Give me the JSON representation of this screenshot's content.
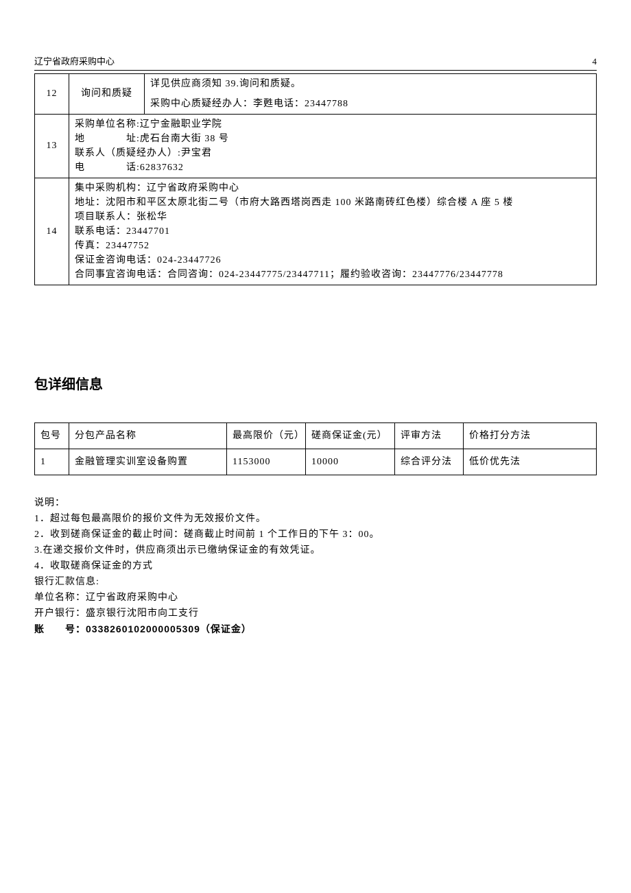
{
  "header": {
    "left": "辽宁省政府采购中心",
    "page_number": "4"
  },
  "info_table": {
    "row12": {
      "num": "12",
      "label": "询问和质疑",
      "line1": "详见供应商须知 39.询问和质疑。",
      "line2": "采购中心质疑经办人：李甦电话：23447788"
    },
    "row13": {
      "num": "13",
      "line1": "采购单位名称:辽宁金融职业学院",
      "line2": "地　　　　址:虎石台南大街 38 号",
      "line3": "联系人（质疑经办人）:尹宝君",
      "line4": "电　　　　话:62837632"
    },
    "row14": {
      "num": "14",
      "line1": "集中采购机构：辽宁省政府采购中心",
      "line2": "地址：沈阳市和平区太原北街二号（市府大路西塔岗西走 100 米路南砖红色楼）综合楼 A 座 5 楼",
      "line3": "项目联系人：张松华",
      "line4": "联系电话：23447701",
      "line5": "传真：23447752",
      "line6": "保证金咨询电话：024-23447726",
      "line7": "合同事宜咨询电话：合同咨询：024-23447775/23447711；履约验收咨询：23447776/23447778"
    }
  },
  "section_title": "包详细信息",
  "pkg_table": {
    "headers": {
      "num": "包号",
      "name": "分包产品名称",
      "max_price": "最高限价（元）",
      "deposit": "磋商保证金(元）",
      "review": "评审方法",
      "score": "价格打分方法"
    },
    "row1": {
      "num": "1",
      "name": "金融管理实训室设备购置",
      "max_price": "1153000",
      "deposit": "10000",
      "review": "综合评分法",
      "score": "低价优先法"
    }
  },
  "notes": {
    "title": "说明：",
    "n1": "1．超过每包最高限价的报价文件为无效报价文件。",
    "n2": "2．收到磋商保证金的截止时间：磋商截止时间前 1 个工作日的下午 3：00。",
    "n3": "3.在递交报价文件时，供应商须出示已缴纳保证金的有效凭证。",
    "n4": "4．收取磋商保证金的方式",
    "bank_title": "银行汇款信息:",
    "unit": "单位名称：辽宁省政府采购中心",
    "bank": "开户银行：盛京银行沈阳市向工支行",
    "account": "账　　号：0338260102000005309（保证金）"
  }
}
